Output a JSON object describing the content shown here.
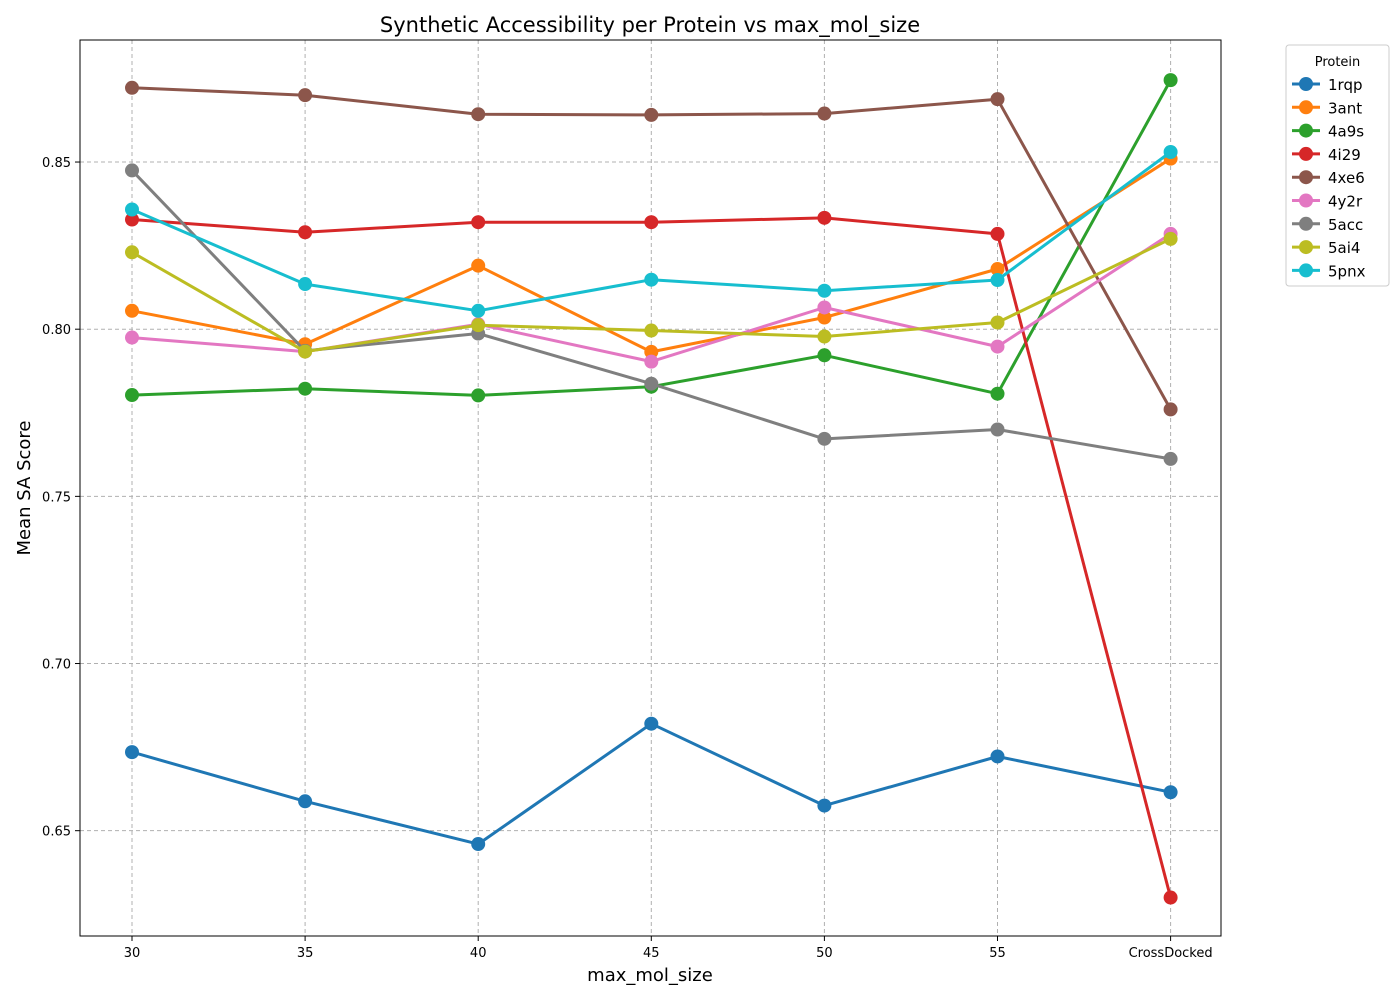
{
  "chart_data": {
    "type": "line",
    "title": "Synthetic Accessibility per Protein vs max_mol_size",
    "xlabel": "max_mol_size",
    "ylabel": "Mean SA Score",
    "categories": [
      "30",
      "35",
      "40",
      "45",
      "50",
      "55",
      "CrossDocked"
    ],
    "yticks": [
      0.65,
      0.7,
      0.75,
      0.8,
      0.85
    ],
    "ytick_labels": [
      "0.65",
      "0.70",
      "0.75",
      "0.80",
      "0.85"
    ],
    "ylim": [
      0.6185,
      0.8865
    ],
    "grid": true,
    "legend": {
      "title": "Protein",
      "placement": "outside-top-right"
    },
    "series": [
      {
        "name": "1rqp",
        "color": "#1f77b4",
        "values": [
          0.6735,
          0.6588,
          0.646,
          0.682,
          0.6575,
          0.6722,
          0.6615
        ]
      },
      {
        "name": "3ant",
        "color": "#ff7f0e",
        "values": [
          0.8055,
          0.7955,
          0.819,
          0.7932,
          0.8035,
          0.818,
          0.851
        ]
      },
      {
        "name": "4a9s",
        "color": "#2ca02c",
        "values": [
          0.7803,
          0.7822,
          0.7802,
          0.7828,
          0.7922,
          0.7807,
          0.8745
        ]
      },
      {
        "name": "4i29",
        "color": "#d62728",
        "values": [
          0.8328,
          0.829,
          0.832,
          0.832,
          0.8333,
          0.8285,
          0.63
        ]
      },
      {
        "name": "4xe6",
        "color": "#8c564b",
        "values": [
          0.8722,
          0.87,
          0.8643,
          0.8641,
          0.8645,
          0.8688,
          0.776
        ]
      },
      {
        "name": "4y2r",
        "color": "#e377c2",
        "values": [
          0.7975,
          0.7933,
          0.8015,
          0.7903,
          0.8065,
          0.7948,
          0.8285
        ]
      },
      {
        "name": "5acc",
        "color": "#7f7f7f",
        "values": [
          0.8475,
          0.7935,
          0.7987,
          0.7837,
          0.7672,
          0.77,
          0.7612
        ]
      },
      {
        "name": "5ai4",
        "color": "#bcbd22",
        "values": [
          0.823,
          0.7933,
          0.8012,
          0.7996,
          0.7978,
          0.802,
          0.827
        ]
      },
      {
        "name": "5pnx",
        "color": "#17becf",
        "values": [
          0.8358,
          0.8135,
          0.8055,
          0.8148,
          0.8115,
          0.8147,
          0.853
        ]
      }
    ]
  }
}
